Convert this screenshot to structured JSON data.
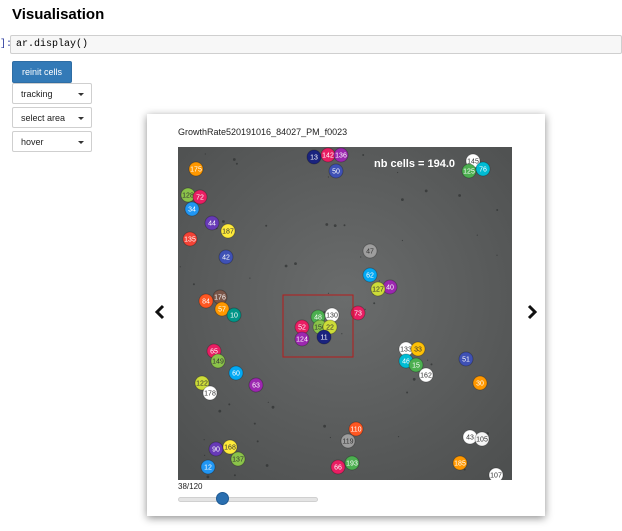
{
  "heading": "Visualisation",
  "cell": {
    "prompt": "]:",
    "code": "ar.display()"
  },
  "buttons": {
    "reinit": "reinit cells"
  },
  "dropdowns": [
    {
      "value": "tracking"
    },
    {
      "value": "select area"
    },
    {
      "value": "hover"
    }
  ],
  "viewer": {
    "image_title": "GrowthRate520191016_84027_PM_f0023",
    "overlay_text": "nb cells = 194.0",
    "frame_label": "38/120",
    "frame_current": 38,
    "frame_total": 120,
    "prev_icon": "chevron-left-icon",
    "next_icon": "chevron-right-icon"
  },
  "cells": [
    {
      "label": "13",
      "color": "#1a237e"
    },
    {
      "label": "142",
      "color": "#e91e63"
    },
    {
      "label": "136",
      "color": "#9c27b0"
    },
    {
      "label": "50",
      "color": "#3f51b5"
    },
    {
      "label": "145",
      "color": "#ffffff"
    },
    {
      "label": "125",
      "color": "#4caf50"
    },
    {
      "label": "76",
      "color": "#00bcd4"
    },
    {
      "label": "175",
      "color": "#ff9800"
    },
    {
      "label": "128",
      "color": "#8bc34a"
    },
    {
      "label": "72",
      "color": "#e91e63"
    },
    {
      "label": "34",
      "color": "#2196f3"
    },
    {
      "label": "44",
      "color": "#673ab7"
    },
    {
      "label": "135",
      "color": "#f44336"
    },
    {
      "label": "187",
      "color": "#ffeb3b"
    },
    {
      "label": "42",
      "color": "#3f51b5"
    },
    {
      "label": "47",
      "color": "#9e9e9e"
    },
    {
      "label": "62",
      "color": "#03a9f4"
    },
    {
      "label": "40",
      "color": "#9c27b0"
    },
    {
      "label": "127",
      "color": "#cddc39"
    },
    {
      "label": "73",
      "color": "#e91e63"
    },
    {
      "label": "84",
      "color": "#ff5722"
    },
    {
      "label": "176",
      "color": "#795548"
    },
    {
      "label": "57",
      "color": "#ff9800"
    },
    {
      "label": "10",
      "color": "#009688"
    },
    {
      "label": "48",
      "color": "#4caf50"
    },
    {
      "label": "130",
      "color": "#ffffff"
    },
    {
      "label": "52",
      "color": "#e91e63"
    },
    {
      "label": "156",
      "color": "#8bc34a"
    },
    {
      "label": "22",
      "color": "#cddc39"
    },
    {
      "label": "124",
      "color": "#9c27b0"
    },
    {
      "label": "11",
      "color": "#1a237e"
    },
    {
      "label": "133",
      "color": "#ffffff"
    },
    {
      "label": "33",
      "color": "#ffc107"
    },
    {
      "label": "46",
      "color": "#00bcd4"
    },
    {
      "label": "15",
      "color": "#4caf50"
    },
    {
      "label": "162",
      "color": "#ffffff"
    },
    {
      "label": "51",
      "color": "#3f51b5"
    },
    {
      "label": "30",
      "color": "#ff9800"
    },
    {
      "label": "65",
      "color": "#e91e63"
    },
    {
      "label": "149",
      "color": "#8bc34a"
    },
    {
      "label": "122",
      "color": "#cddc39"
    },
    {
      "label": "60",
      "color": "#03a9f4"
    },
    {
      "label": "63",
      "color": "#9c27b0"
    },
    {
      "label": "178",
      "color": "#ffffff"
    },
    {
      "label": "110",
      "color": "#ff5722"
    },
    {
      "label": "119",
      "color": "#9e9e9e"
    },
    {
      "label": "66",
      "color": "#e91e63"
    },
    {
      "label": "193",
      "color": "#4caf50"
    },
    {
      "label": "43",
      "color": "#ffffff"
    },
    {
      "label": "105",
      "color": "#f5f5f5"
    },
    {
      "label": "185",
      "color": "#ff9800"
    },
    {
      "label": "107",
      "color": "#ffffff"
    },
    {
      "label": "90",
      "color": "#673ab7"
    },
    {
      "label": "168",
      "color": "#ffeb3b"
    },
    {
      "label": "12",
      "color": "#2196f3"
    },
    {
      "label": "137",
      "color": "#8bc34a"
    }
  ]
}
